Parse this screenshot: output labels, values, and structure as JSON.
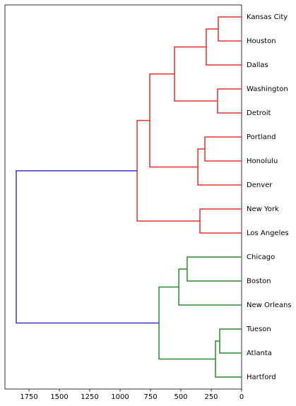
{
  "chart_data": {
    "type": "dendrogram",
    "leaves": [
      "Kansas City",
      "Houston",
      "Dallas",
      "Washington",
      "Detroit",
      "Portland",
      "Honolulu",
      "Denver",
      "New York",
      "Los Angeles",
      "Chicago",
      "Boston",
      "New Orleans",
      "Tueson",
      "Atlanta",
      "Hartford"
    ],
    "merges": [
      {
        "children": [
          0,
          1
        ],
        "height": 192,
        "color": "#e8302a"
      },
      {
        "children": [
          16,
          2
        ],
        "height": 291,
        "color": "#e8302a"
      },
      {
        "children": [
          3,
          4
        ],
        "height": 198,
        "color": "#e8302a"
      },
      {
        "children": [
          17,
          18
        ],
        "height": 552,
        "color": "#e8302a"
      },
      {
        "children": [
          5,
          6
        ],
        "height": 302,
        "color": "#e8302a"
      },
      {
        "children": [
          20,
          7
        ],
        "height": 360,
        "color": "#e8302a"
      },
      {
        "children": [
          19,
          21
        ],
        "height": 756,
        "color": "#e8302a"
      },
      {
        "children": [
          8,
          9
        ],
        "height": 343,
        "color": "#e8302a"
      },
      {
        "children": [
          22,
          23
        ],
        "height": 860,
        "color": "#e8302a"
      },
      {
        "children": [
          10,
          11
        ],
        "height": 448,
        "color": "#2a8a2a"
      },
      {
        "children": [
          25,
          12
        ],
        "height": 517,
        "color": "#2a8a2a"
      },
      {
        "children": [
          13,
          14
        ],
        "height": 180,
        "color": "#2a8a2a"
      },
      {
        "children": [
          27,
          15
        ],
        "height": 215,
        "color": "#2a8a2a"
      },
      {
        "children": [
          26,
          28
        ],
        "height": 680,
        "color": "#2a8a2a"
      },
      {
        "children": [
          24,
          29
        ],
        "height": 1855,
        "color": "#3535c8"
      }
    ],
    "xlim": [
      1948,
      0
    ],
    "xticks": [
      1750,
      1500,
      1250,
      1000,
      750,
      500,
      250,
      0
    ]
  }
}
